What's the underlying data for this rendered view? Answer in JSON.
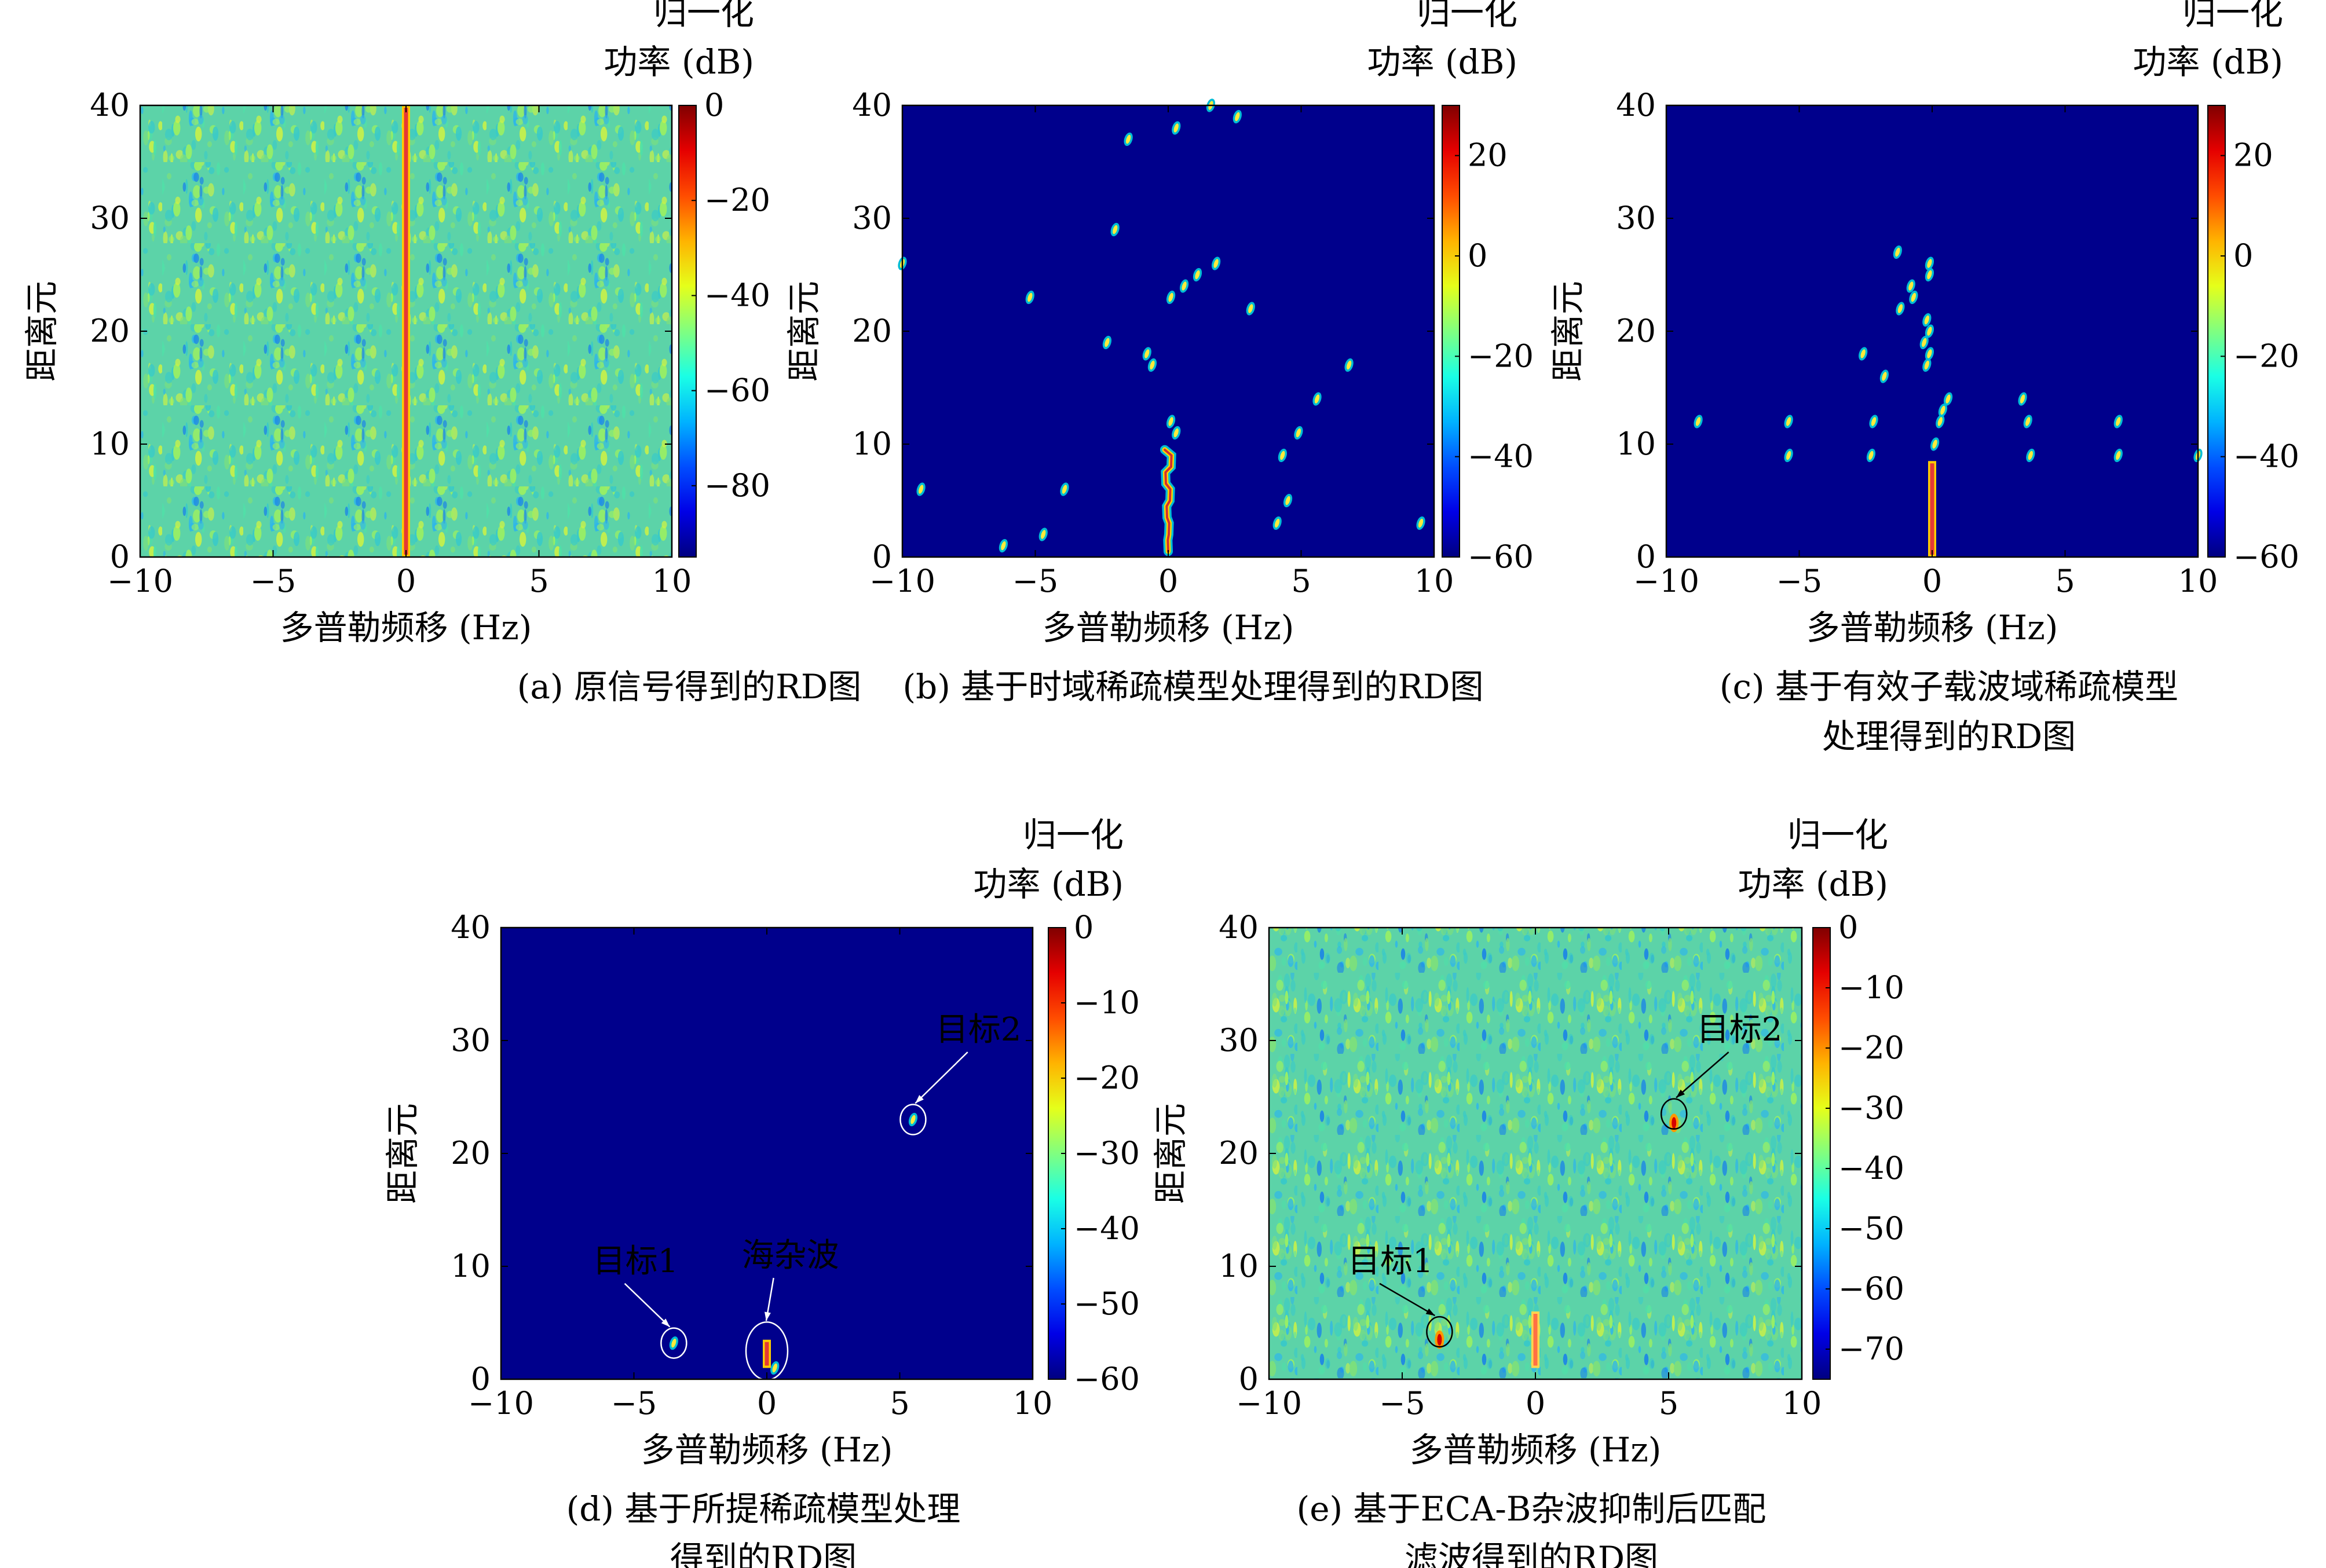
{
  "chart_data": [
    {
      "type": "heatmap",
      "panel": "a",
      "caption": [
        "(a) 原信号得到的RD图"
      ],
      "xlabel": "多普勒频移 (Hz)",
      "ylabel": "距离元",
      "xlim": [
        -10,
        10
      ],
      "ylim": [
        0,
        40
      ],
      "xticks": [
        -10,
        -5,
        0,
        5,
        10
      ],
      "xtick_labels": [
        "−10",
        "−5",
        "0",
        "5",
        "10"
      ],
      "yticks": [
        0,
        10,
        20,
        30,
        40
      ],
      "colorbar": {
        "title": [
          "归一化",
          "功率 (dB)"
        ],
        "range": [
          -95,
          0
        ],
        "ticks": [
          0,
          -20,
          -40,
          -60,
          -80
        ],
        "tick_labels": [
          "0",
          "−20",
          "−40",
          "−60",
          "−80"
        ]
      },
      "background": "noise",
      "ridges": [
        {
          "x": 0,
          "y0": 0,
          "y1": 40,
          "level": "high"
        }
      ],
      "points": [],
      "annotations": []
    },
    {
      "type": "heatmap",
      "panel": "b",
      "caption": [
        "(b) 基于时域稀疏模型处理得到的RD图"
      ],
      "xlabel": "多普勒频移 (Hz)",
      "ylabel": "距离元",
      "xlim": [
        -10,
        10
      ],
      "ylim": [
        0,
        40
      ],
      "xticks": [
        -10,
        -5,
        0,
        5,
        10
      ],
      "xtick_labels": [
        "−10",
        "−5",
        "0",
        "5",
        "10"
      ],
      "yticks": [
        0,
        10,
        20,
        30,
        40
      ],
      "colorbar": {
        "title": [
          "归一化",
          "功率 (dB)"
        ],
        "range": [
          -60,
          30
        ],
        "ticks": [
          20,
          0,
          -20,
          -40,
          -60
        ],
        "tick_labels": [
          "20",
          "0",
          "−20",
          "−40",
          "−60"
        ]
      },
      "background": "sparse",
      "ridges": [
        {
          "x": 0,
          "y0": 0.5,
          "y1": 9.5,
          "level": "high",
          "wavy": true
        }
      ],
      "points": [
        [
          -1.5,
          37
        ],
        [
          0.3,
          38
        ],
        [
          1.6,
          40
        ],
        [
          2.6,
          39
        ],
        [
          -2,
          29
        ],
        [
          -5.2,
          23
        ],
        [
          0.1,
          23
        ],
        [
          0.6,
          24
        ],
        [
          1.1,
          25
        ],
        [
          1.8,
          26
        ],
        [
          3.1,
          22
        ],
        [
          -2.3,
          19
        ],
        [
          -0.8,
          18
        ],
        [
          -0.6,
          17
        ],
        [
          6.8,
          17
        ],
        [
          0.1,
          12
        ],
        [
          0.3,
          11
        ],
        [
          5.6,
          14
        ],
        [
          4.9,
          11
        ],
        [
          -9.3,
          6
        ],
        [
          -3.9,
          6
        ],
        [
          4.3,
          9
        ],
        [
          4.5,
          5
        ],
        [
          4.1,
          3
        ],
        [
          -4.7,
          2
        ],
        [
          -6.2,
          1
        ],
        [
          9.5,
          3
        ],
        [
          -10,
          26
        ]
      ],
      "annotations": []
    },
    {
      "type": "heatmap",
      "panel": "c",
      "caption": [
        "(c) 基于有效子载波域稀疏模型",
        "处理得到的RD图"
      ],
      "xlabel": "多普勒频移 (Hz)",
      "ylabel": "距离元",
      "xlim": [
        -10,
        10
      ],
      "ylim": [
        0,
        40
      ],
      "xticks": [
        -10,
        -5,
        0,
        5,
        10
      ],
      "xtick_labels": [
        "−10",
        "−5",
        "0",
        "5",
        "10"
      ],
      "yticks": [
        0,
        10,
        20,
        30,
        40
      ],
      "colorbar": {
        "title": [
          "归一化",
          "功率 (dB)"
        ],
        "range": [
          -60,
          30
        ],
        "ticks": [
          20,
          0,
          -20,
          -40,
          -60
        ],
        "tick_labels": [
          "20",
          "0",
          "−20",
          "−40",
          "−60"
        ]
      },
      "background": "sparse",
      "ridges": [
        {
          "x": 0,
          "y0": 0,
          "y1": 8.5,
          "level": "high",
          "wavy": false
        }
      ],
      "points": [
        [
          -1.3,
          27
        ],
        [
          -0.8,
          24
        ],
        [
          -0.7,
          23
        ],
        [
          -1.2,
          22
        ],
        [
          -0.1,
          26
        ],
        [
          -0.1,
          25
        ],
        [
          -0.2,
          21
        ],
        [
          -0.1,
          20
        ],
        [
          -0.3,
          19
        ],
        [
          -0.1,
          18
        ],
        [
          -0.2,
          17
        ],
        [
          -2.6,
          18
        ],
        [
          -1.8,
          16
        ],
        [
          0.4,
          13
        ],
        [
          0.6,
          14
        ],
        [
          0.3,
          12
        ],
        [
          0.1,
          10
        ],
        [
          3.4,
          14
        ],
        [
          3.6,
          12
        ],
        [
          3.7,
          9
        ],
        [
          -2.2,
          12
        ],
        [
          -2.3,
          9
        ],
        [
          -5.4,
          12
        ],
        [
          -5.4,
          9
        ],
        [
          -8.8,
          12
        ],
        [
          7,
          12
        ],
        [
          7,
          9
        ],
        [
          10,
          9
        ]
      ],
      "annotations": []
    },
    {
      "type": "heatmap",
      "panel": "d",
      "caption": [
        "(d) 基于所提稀疏模型处理",
        "得到的RD图"
      ],
      "xlabel": "多普勒频移 (Hz)",
      "ylabel": "距离元",
      "xlim": [
        -10,
        10
      ],
      "ylim": [
        0,
        40
      ],
      "xticks": [
        -10,
        -5,
        0,
        5,
        10
      ],
      "xtick_labels": [
        "−10",
        "−5",
        "0",
        "5",
        "10"
      ],
      "yticks": [
        0,
        10,
        20,
        30,
        40
      ],
      "colorbar": {
        "title": [
          "归一化",
          "功率 (dB)"
        ],
        "range": [
          -60,
          0
        ],
        "ticks": [
          0,
          -10,
          -20,
          -30,
          -40,
          -50,
          -60
        ],
        "tick_labels": [
          "0",
          "−10",
          "−20",
          "−30",
          "−40",
          "−50",
          "−60"
        ]
      },
      "background": "sparse",
      "ridges": [
        {
          "x": 0,
          "y0": 1,
          "y1": 3.5,
          "level": "high",
          "wavy": false
        }
      ],
      "points": [
        [
          -3.5,
          3.2
        ],
        [
          5.5,
          23
        ],
        [
          0.3,
          1
        ]
      ],
      "annotations": [
        {
          "text": "目标1",
          "target": [
            -3.5,
            3.2
          ],
          "text_pos": [
            -6,
            9.5
          ],
          "ellipse_color": "#ffffff"
        },
        {
          "text": "海杂波",
          "target": [
            0,
            2.5
          ],
          "text_pos": [
            -0.4,
            10
          ],
          "ellipse_color": "#ffffff"
        },
        {
          "text": "目标2",
          "target": [
            5.5,
            23
          ],
          "text_pos": [
            6.9,
            30
          ],
          "ellipse_color": "#ffffff"
        }
      ]
    },
    {
      "type": "heatmap",
      "panel": "e",
      "caption": [
        "(e) 基于ECA-B杂波抑制后匹配",
        "滤波得到的RD图"
      ],
      "xlabel": "多普勒频移 (Hz)",
      "ylabel": "距离元",
      "xlim": [
        -10,
        10
      ],
      "ylim": [
        0,
        40
      ],
      "xticks": [
        -10,
        -5,
        0,
        5,
        10
      ],
      "xtick_labels": [
        "−10",
        "−5",
        "0",
        "5",
        "10"
      ],
      "yticks": [
        0,
        10,
        20,
        30,
        40
      ],
      "colorbar": {
        "title": [
          "归一化",
          "功率 (dB)"
        ],
        "range": [
          -75,
          0
        ],
        "ticks": [
          0,
          -10,
          -20,
          -30,
          -40,
          -50,
          -60,
          -70
        ],
        "tick_labels": [
          "0",
          "−10",
          "−20",
          "−30",
          "−40",
          "−50",
          "−60",
          "−70"
        ]
      },
      "background": "noise",
      "ridges": [
        {
          "x": 0,
          "y0": 1,
          "y1": 6,
          "level": "medium"
        }
      ],
      "points": [
        [
          -3.6,
          3.5
        ],
        [
          5.2,
          22.7
        ]
      ],
      "annotations": [
        {
          "text": "目标1",
          "target": [
            -3.6,
            4.2
          ],
          "text_pos": [
            -6.5,
            9.5
          ],
          "ellipse_color": "#000000"
        },
        {
          "text": "目标2",
          "target": [
            5.2,
            23.5
          ],
          "text_pos": [
            6.6,
            30
          ],
          "ellipse_color": "#000000"
        }
      ]
    }
  ]
}
